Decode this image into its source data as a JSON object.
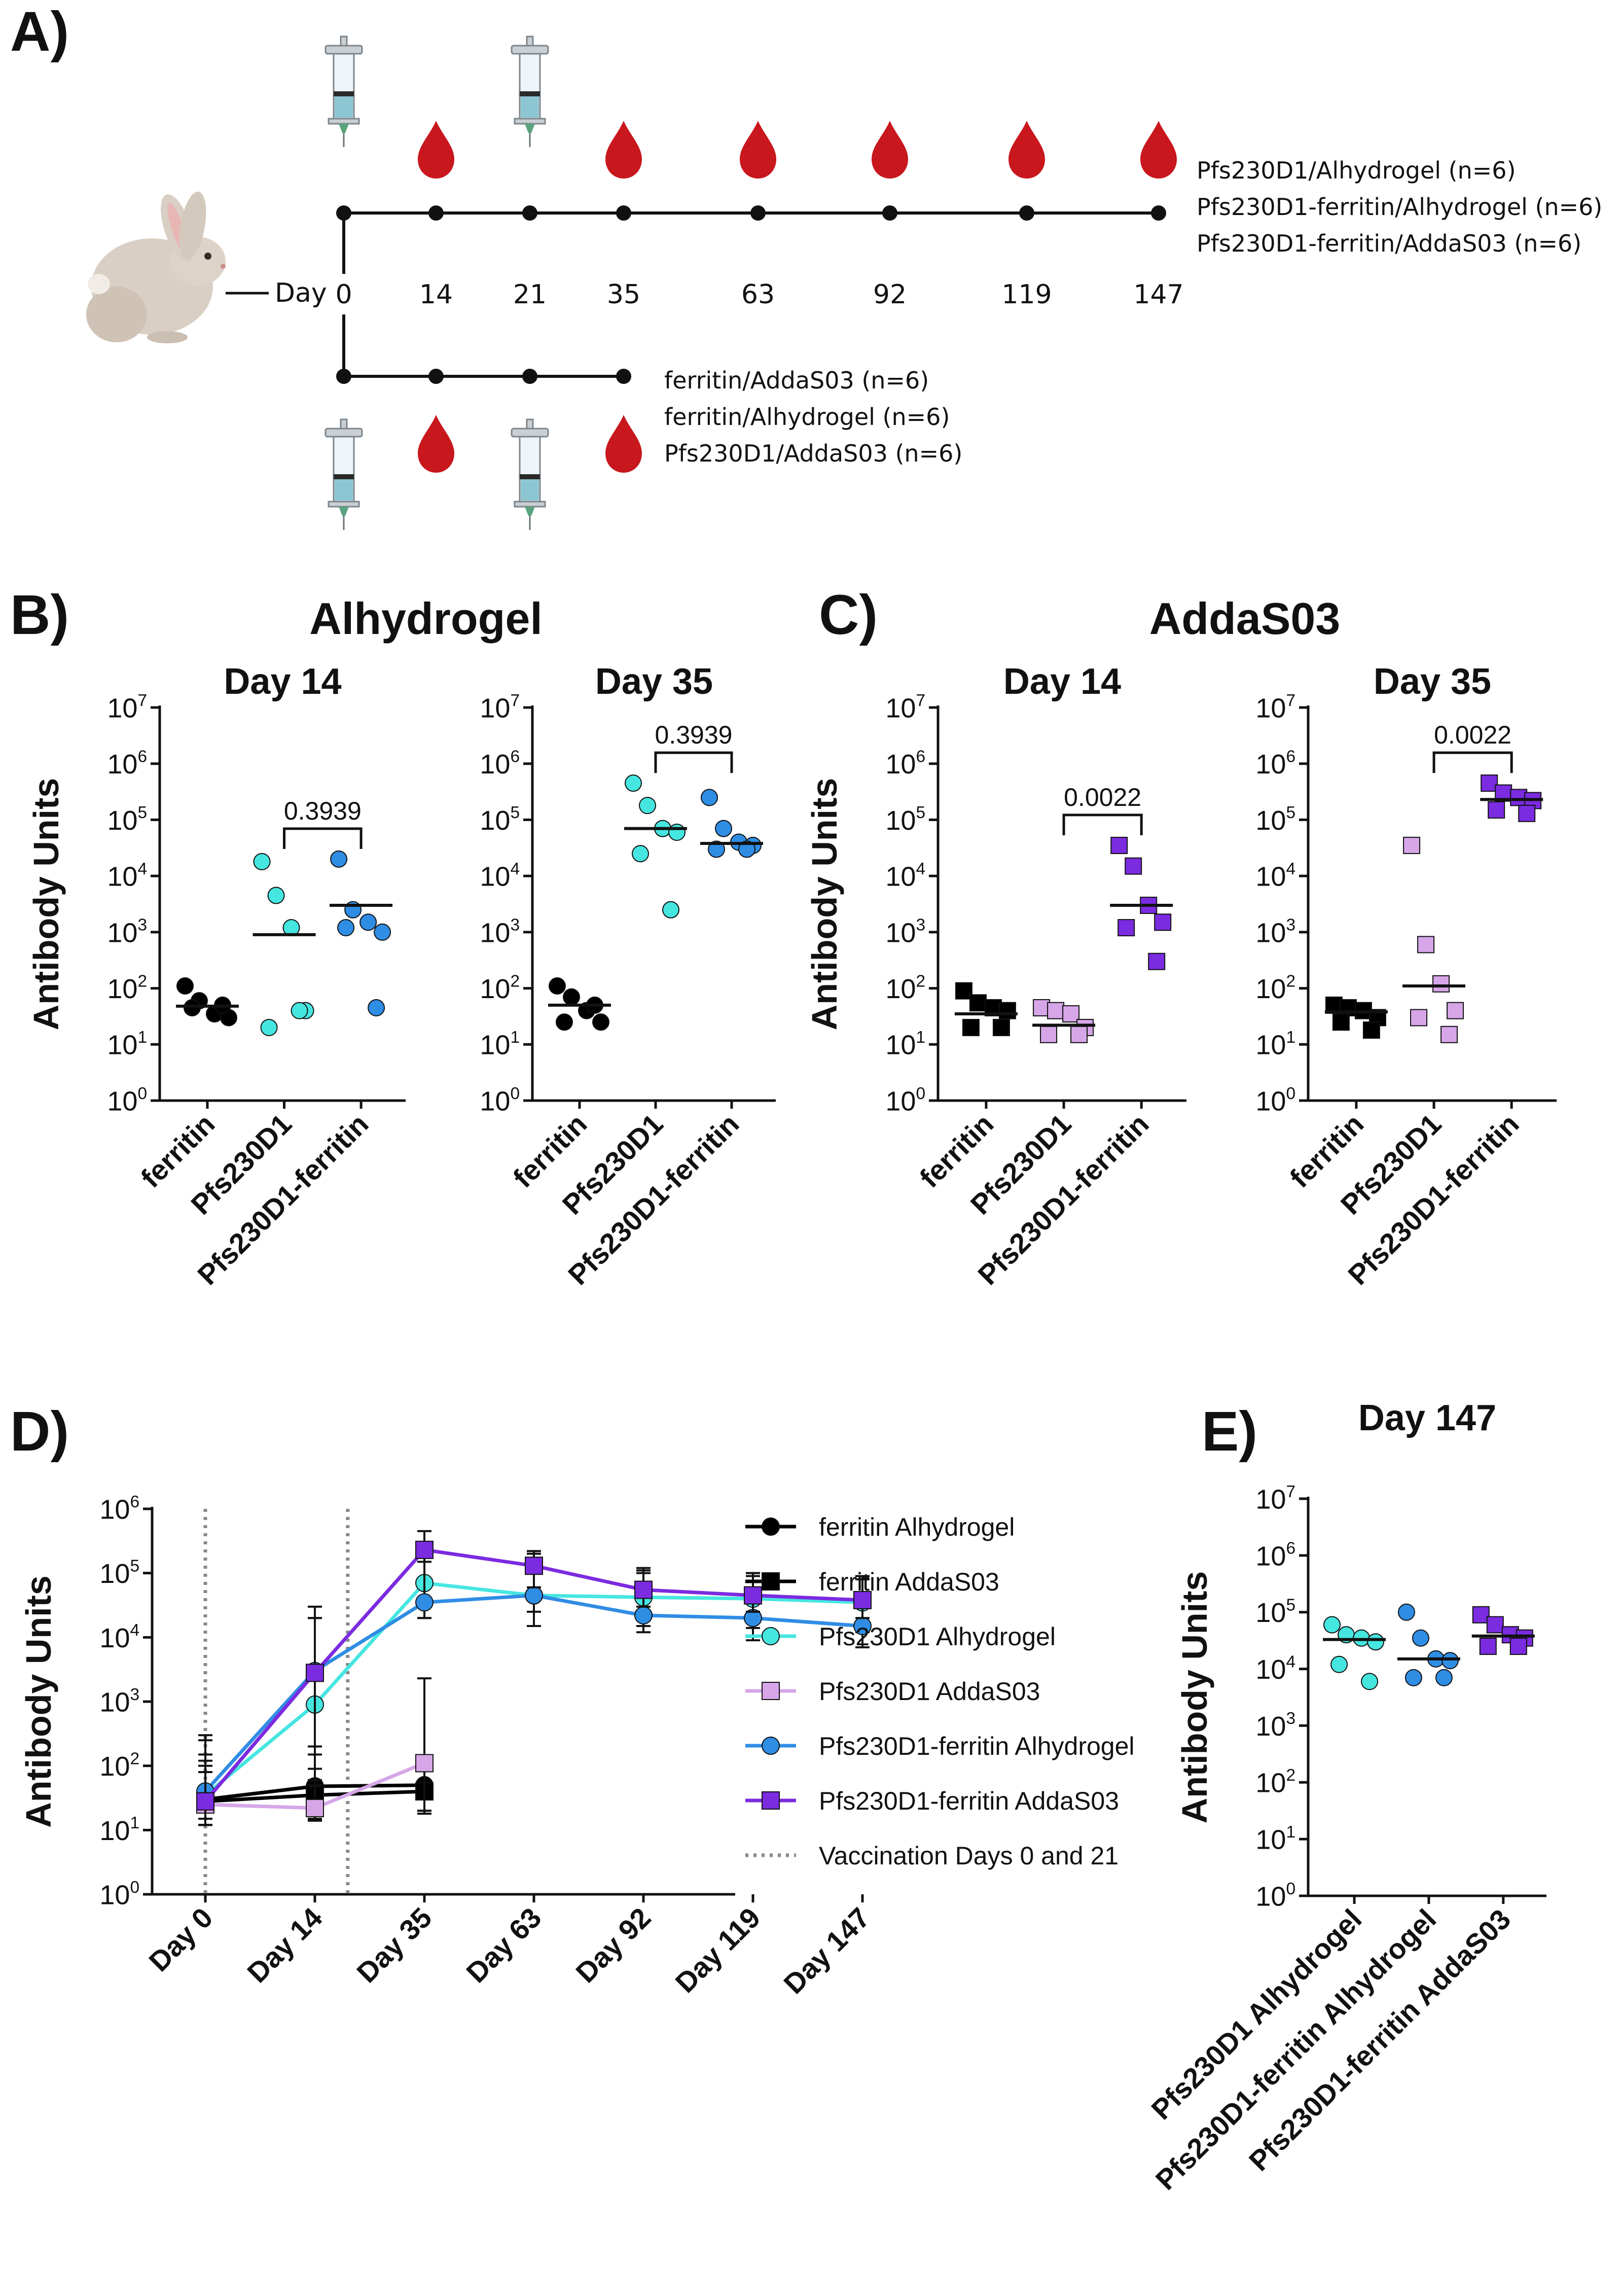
{
  "colors": {
    "black": "#000000",
    "cyan": "#46e6e0",
    "pink": "#d6a6e8",
    "blue": "#2f8de4",
    "purple": "#7b2be0",
    "blood": "#c8171d",
    "vacline": "#888888"
  },
  "icons": {
    "animal": "rabbit-icon",
    "injection": "syringe-icon",
    "bleed": "blood-drop-icon"
  },
  "panel_a": {
    "label": "A)",
    "day_prefix": "Day",
    "top_days": [
      "0",
      "14",
      "21",
      "35",
      "63",
      "92",
      "119",
      "147"
    ],
    "top_bleeds": [
      "14",
      "35",
      "63",
      "92",
      "119",
      "147"
    ],
    "top_vaccinations": [
      "0",
      "21"
    ],
    "top_groups": [
      "Pfs230D1/Alhydrogel (n=6)",
      "Pfs230D1-ferritin/Alhydrogel (n=6)",
      "Pfs230D1-ferritin/AddaS03 (n=6)"
    ],
    "bottom_days": [
      "0",
      "14",
      "21",
      "35"
    ],
    "bottom_bleeds": [
      "14",
      "35"
    ],
    "bottom_vaccinations": [
      "0",
      "21"
    ],
    "bottom_groups": [
      "ferritin/AddaS03 (n=6)",
      "ferritin/Alhydrogel (n=6)",
      "Pfs230D1/AddaS03 (n=6)"
    ]
  },
  "panel_b": {
    "label": "B)",
    "title": "Alhydrogel"
  },
  "panel_c": {
    "label": "C)",
    "title": "AddaS03"
  },
  "panel_d": {
    "label": "D)"
  },
  "panel_e": {
    "label": "E)"
  },
  "chart_data": [
    {
      "id": "B-day14",
      "type": "scatter",
      "panel": "B",
      "title": "Day 14",
      "ylabel": "Antibody Units",
      "yscale": "log10",
      "ylim": [
        1,
        10000000
      ],
      "yticks": [
        {
          "base": "10",
          "exp": "0"
        },
        {
          "base": "10",
          "exp": "1"
        },
        {
          "base": "10",
          "exp": "2"
        },
        {
          "base": "10",
          "exp": "3"
        },
        {
          "base": "10",
          "exp": "4"
        },
        {
          "base": "10",
          "exp": "5"
        },
        {
          "base": "10",
          "exp": "6"
        },
        {
          "base": "10",
          "exp": "7"
        }
      ],
      "categories": [
        "ferritin",
        "Pfs230D1",
        "Pfs230D1-ferritin"
      ],
      "groups": [
        {
          "name": "ferritin",
          "marker": "circle",
          "color": "#000000",
          "values": [
            110,
            60,
            35,
            30,
            45,
            50
          ],
          "median": 48
        },
        {
          "name": "Pfs230D1",
          "marker": "circle",
          "color": "#46e6e0",
          "values": [
            18000,
            4500,
            1200,
            40,
            20,
            40
          ],
          "median": 900
        },
        {
          "name": "Pfs230D1-ferritin",
          "marker": "circle",
          "color": "#2f8de4",
          "values": [
            20000,
            2500,
            1500,
            1000,
            1200,
            45
          ],
          "median": 3000
        }
      ],
      "comparison": {
        "between": [
          1,
          2
        ],
        "label": "0.3939"
      }
    },
    {
      "id": "B-day35",
      "type": "scatter",
      "panel": "B",
      "title": "Day 35",
      "ylabel": "",
      "yscale": "log10",
      "ylim": [
        1,
        10000000
      ],
      "yticks": [
        {
          "base": "10",
          "exp": "0"
        },
        {
          "base": "10",
          "exp": "1"
        },
        {
          "base": "10",
          "exp": "2"
        },
        {
          "base": "10",
          "exp": "3"
        },
        {
          "base": "10",
          "exp": "4"
        },
        {
          "base": "10",
          "exp": "5"
        },
        {
          "base": "10",
          "exp": "6"
        },
        {
          "base": "10",
          "exp": "7"
        }
      ],
      "categories": [
        "ferritin",
        "Pfs230D1",
        "Pfs230D1-ferritin"
      ],
      "groups": [
        {
          "name": "ferritin",
          "marker": "circle",
          "color": "#000000",
          "values": [
            110,
            70,
            40,
            25,
            25,
            50
          ],
          "median": 50
        },
        {
          "name": "Pfs230D1",
          "marker": "circle",
          "color": "#46e6e0",
          "values": [
            450000,
            180000,
            70000,
            60000,
            25000,
            2500
          ],
          "median": 70000
        },
        {
          "name": "Pfs230D1-ferritin",
          "marker": "circle",
          "color": "#2f8de4",
          "values": [
            250000,
            70000,
            40000,
            35000,
            30000,
            30000
          ],
          "median": 38000
        }
      ],
      "comparison": {
        "between": [
          1,
          2
        ],
        "label": "0.3939"
      }
    },
    {
      "id": "C-day14",
      "type": "scatter",
      "panel": "C",
      "title": "Day 14",
      "ylabel": "Antibody Units",
      "yscale": "log10",
      "ylim": [
        1,
        10000000
      ],
      "yticks": [
        {
          "base": "10",
          "exp": "0"
        },
        {
          "base": "10",
          "exp": "1"
        },
        {
          "base": "10",
          "exp": "2"
        },
        {
          "base": "10",
          "exp": "3"
        },
        {
          "base": "10",
          "exp": "4"
        },
        {
          "base": "10",
          "exp": "5"
        },
        {
          "base": "10",
          "exp": "6"
        },
        {
          "base": "10",
          "exp": "7"
        }
      ],
      "categories": [
        "ferritin",
        "Pfs230D1",
        "Pfs230D1-ferritin"
      ],
      "groups": [
        {
          "name": "ferritin",
          "marker": "square",
          "color": "#000000",
          "values": [
            90,
            55,
            45,
            40,
            20,
            20
          ],
          "median": 35
        },
        {
          "name": "Pfs230D1",
          "marker": "square",
          "color": "#d6a6e8",
          "values": [
            45,
            40,
            35,
            20,
            15,
            15
          ],
          "median": 22
        },
        {
          "name": "Pfs230D1-ferritin",
          "marker": "square",
          "color": "#7b2be0",
          "values": [
            35000,
            15000,
            3000,
            1500,
            1200,
            300
          ],
          "median": 3000
        }
      ],
      "comparison": {
        "between": [
          1,
          2
        ],
        "label": "0.0022"
      }
    },
    {
      "id": "C-day35",
      "type": "scatter",
      "panel": "C",
      "title": "Day 35",
      "ylabel": "",
      "yscale": "log10",
      "ylim": [
        1,
        10000000
      ],
      "yticks": [
        {
          "base": "10",
          "exp": "0"
        },
        {
          "base": "10",
          "exp": "1"
        },
        {
          "base": "10",
          "exp": "2"
        },
        {
          "base": "10",
          "exp": "3"
        },
        {
          "base": "10",
          "exp": "4"
        },
        {
          "base": "10",
          "exp": "5"
        },
        {
          "base": "10",
          "exp": "6"
        },
        {
          "base": "10",
          "exp": "7"
        }
      ],
      "categories": [
        "ferritin",
        "Pfs230D1",
        "Pfs230D1-ferritin"
      ],
      "groups": [
        {
          "name": "ferritin",
          "marker": "square",
          "color": "#000000",
          "values": [
            50,
            45,
            40,
            30,
            25,
            18
          ],
          "median": 38
        },
        {
          "name": "Pfs230D1",
          "marker": "square",
          "color": "#d6a6e8",
          "values": [
            35000,
            600,
            120,
            40,
            30,
            15
          ],
          "median": 110
        },
        {
          "name": "Pfs230D1-ferritin",
          "marker": "square",
          "color": "#7b2be0",
          "values": [
            450000,
            300000,
            250000,
            220000,
            150000,
            130000
          ],
          "median": 230000
        }
      ],
      "comparison": {
        "between": [
          1,
          2
        ],
        "label": "0.0022"
      }
    },
    {
      "id": "D",
      "type": "line",
      "panel": "D",
      "title": "",
      "ylabel": "Antibody Units",
      "yscale": "log10",
      "ylim": [
        1,
        1000000
      ],
      "yticks": [
        {
          "base": "10",
          "exp": "0"
        },
        {
          "base": "10",
          "exp": "1"
        },
        {
          "base": "10",
          "exp": "2"
        },
        {
          "base": "10",
          "exp": "3"
        },
        {
          "base": "10",
          "exp": "4"
        },
        {
          "base": "10",
          "exp": "5"
        },
        {
          "base": "10",
          "exp": "6"
        }
      ],
      "categories": [
        "Day 0",
        "Day 14",
        "Day 35",
        "Day 63",
        "Day 92",
        "Day 119",
        "Day 147"
      ],
      "vaccination_line_label": "Vaccination Days 0 and 21",
      "vaccination_at": [
        0,
        1.3
      ],
      "series": [
        {
          "name": "ferritin Alhydrogel",
          "marker": "circle",
          "color": "#000000",
          "values": [
            30,
            48,
            50,
            null,
            null,
            null,
            null
          ],
          "err_lo": [
            12,
            20,
            20,
            null,
            null,
            null,
            null
          ],
          "err_hi": [
            100,
            150,
            130,
            null,
            null,
            null,
            null
          ]
        },
        {
          "name": "ferritin AddaS03",
          "marker": "square",
          "color": "#000000",
          "values": [
            28,
            35,
            40,
            null,
            null,
            null,
            null
          ],
          "err_lo": [
            12,
            15,
            18,
            null,
            null,
            null,
            null
          ],
          "err_hi": [
            80,
            90,
            100,
            null,
            null,
            null,
            null
          ]
        },
        {
          "name": "Pfs230D1 Alhydrogel",
          "marker": "circle",
          "color": "#46e6e0",
          "values": [
            35,
            900,
            70000,
            45000,
            42000,
            40000,
            35000
          ],
          "err_lo": [
            15,
            30,
            20000,
            15000,
            15000,
            14000,
            12000
          ],
          "err_hi": [
            150,
            20000,
            300000,
            150000,
            120000,
            100000,
            90000
          ]
        },
        {
          "name": "Pfs230D1 AddaS03",
          "marker": "square",
          "color": "#d6a6e8",
          "values": [
            25,
            22,
            110,
            null,
            null,
            null,
            null
          ],
          "err_lo": [
            12,
            14,
            20,
            null,
            null,
            null,
            null
          ],
          "err_hi": [
            300,
            60,
            2300,
            null,
            null,
            null,
            null
          ]
        },
        {
          "name": "Pfs230D1-ferritin Alhydrogel",
          "marker": "circle",
          "color": "#2f8de4",
          "values": [
            40,
            3000,
            35000,
            45000,
            22000,
            20000,
            15000
          ],
          "err_lo": [
            15,
            200,
            20000,
            25000,
            12000,
            9000,
            7000
          ],
          "err_hi": [
            250,
            30000,
            250000,
            200000,
            100000,
            90000,
            80000
          ]
        },
        {
          "name": "Pfs230D1-ferritin AddaS03",
          "marker": "square",
          "color": "#7b2be0",
          "values": [
            28,
            2800,
            230000,
            130000,
            55000,
            45000,
            38000
          ],
          "err_lo": [
            12,
            50,
            150000,
            60000,
            30000,
            25000,
            20000
          ],
          "err_hi": [
            120,
            20000,
            450000,
            220000,
            110000,
            100000,
            90000
          ]
        }
      ]
    },
    {
      "id": "E",
      "type": "scatter",
      "panel": "E",
      "title": "Day 147",
      "ylabel": "Antibody Units",
      "yscale": "log10",
      "ylim": [
        1,
        10000000
      ],
      "yticks": [
        {
          "base": "10",
          "exp": "0"
        },
        {
          "base": "10",
          "exp": "1"
        },
        {
          "base": "10",
          "exp": "2"
        },
        {
          "base": "10",
          "exp": "3"
        },
        {
          "base": "10",
          "exp": "4"
        },
        {
          "base": "10",
          "exp": "5"
        },
        {
          "base": "10",
          "exp": "6"
        },
        {
          "base": "10",
          "exp": "7"
        }
      ],
      "categories": [
        "Pfs230D1 Alhydrogel",
        "Pfs230D1-ferritin Alhydrogel",
        "Pfs230D1-ferritin AddaS03"
      ],
      "groups": [
        {
          "name": "Pfs230D1 Alhydrogel",
          "marker": "circle",
          "color": "#46e6e0",
          "values": [
            60000,
            40000,
            35000,
            30000,
            12000,
            6000
          ],
          "median": 33000
        },
        {
          "name": "Pfs230D1-ferritin Alhydrogel",
          "marker": "circle",
          "color": "#2f8de4",
          "values": [
            100000,
            35000,
            15000,
            14000,
            7000,
            7000
          ],
          "median": 15000
        },
        {
          "name": "Pfs230D1-ferritin AddaS03",
          "marker": "square",
          "color": "#7b2be0",
          "values": [
            90000,
            60000,
            40000,
            35000,
            25000,
            25000
          ],
          "median": 38000
        }
      ]
    }
  ]
}
